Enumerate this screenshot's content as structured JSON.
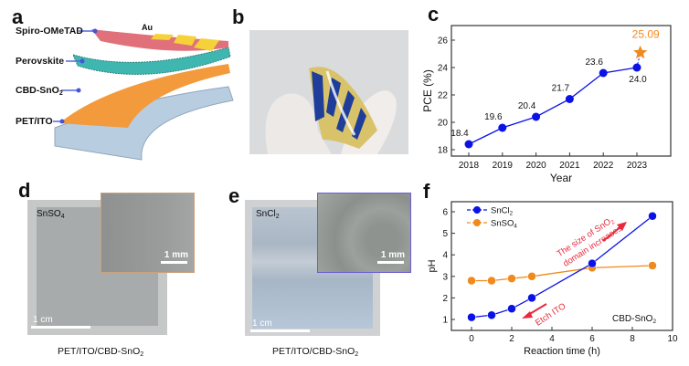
{
  "panels": {
    "a": {
      "label": "a",
      "layers": [
        "Spiro-OMeTAD",
        "Au",
        "Perovskite",
        "CBD-SnO",
        "PET/ITO"
      ],
      "sno2_sub": "2",
      "colors": {
        "spiro": "#e0707a",
        "au": "#f5d23a",
        "perovskite": "#3fb7b0",
        "sno2": "#f39a3c",
        "pet": "#b9cde0"
      }
    },
    "b": {
      "label": "b"
    },
    "c": {
      "label": "c"
    },
    "d": {
      "label": "d",
      "sample": "SnSO",
      "sample_sub": "4",
      "inset_scale": "1 mm",
      "scale": "1 cm",
      "caption": "PET/ITO/CBD-SnO",
      "caption_sub": "2",
      "inset_border": "#c9a27e"
    },
    "e": {
      "label": "e",
      "sample": "SnCl",
      "sample_sub": "2",
      "inset_scale": "1 mm",
      "scale": "1 cm",
      "caption": "PET/ITO/CBD-SnO",
      "caption_sub": "2",
      "inset_border": "#6b5fd0"
    },
    "f": {
      "label": "f"
    }
  },
  "chart_data": [
    {
      "panel": "c",
      "type": "line",
      "xlabel": "Year",
      "ylabel": "PCE (%)",
      "x": [
        2018,
        2019,
        2020,
        2021,
        2022,
        2023
      ],
      "xlim": [
        2017.5,
        2024
      ],
      "ylim": [
        17.5,
        27
      ],
      "yticks": [
        18,
        20,
        22,
        24,
        26
      ],
      "series": [
        {
          "values": [
            18.4,
            19.6,
            20.4,
            21.7,
            23.6,
            24.0
          ],
          "labels": [
            "18.4",
            "19.6",
            "20.4",
            "21.7",
            "23.6",
            "24.0"
          ],
          "color": "#0a12e6",
          "marker": "circle"
        }
      ],
      "highlight": {
        "x": 2023.1,
        "y": 25.09,
        "label": "25.09",
        "marker": "star",
        "color": "#f0891e"
      },
      "grid": false
    },
    {
      "panel": "f",
      "type": "line",
      "xlabel": "Reaction time (h)",
      "ylabel": "pH",
      "xlim": [
        -1,
        10
      ],
      "ylim": [
        0.5,
        6.5
      ],
      "xticks": [
        0,
        2,
        4,
        6,
        8,
        10
      ],
      "yticks": [
        1,
        2,
        3,
        4,
        5,
        6
      ],
      "x": [
        0,
        1,
        2,
        3,
        6,
        9
      ],
      "series": [
        {
          "name": "SnCl",
          "name_sub": "2",
          "values": [
            1.1,
            1.2,
            1.5,
            2.0,
            3.6,
            5.8
          ],
          "color": "#0a12e6"
        },
        {
          "name": "SnSO",
          "name_sub": "4",
          "values": [
            2.8,
            2.8,
            2.9,
            3.0,
            3.4,
            3.5
          ],
          "color": "#f08a1c"
        }
      ],
      "annotations": [
        {
          "text": "The size of SnO",
          "sub": "2",
          "text2": "domain increases",
          "color": "#e8283c"
        },
        {
          "text": "Etch ITO",
          "color": "#e8283c"
        },
        {
          "text": "CBD-SnO",
          "sub": "2",
          "color": "#111111"
        }
      ],
      "legend": "top-left",
      "grid": false
    }
  ]
}
